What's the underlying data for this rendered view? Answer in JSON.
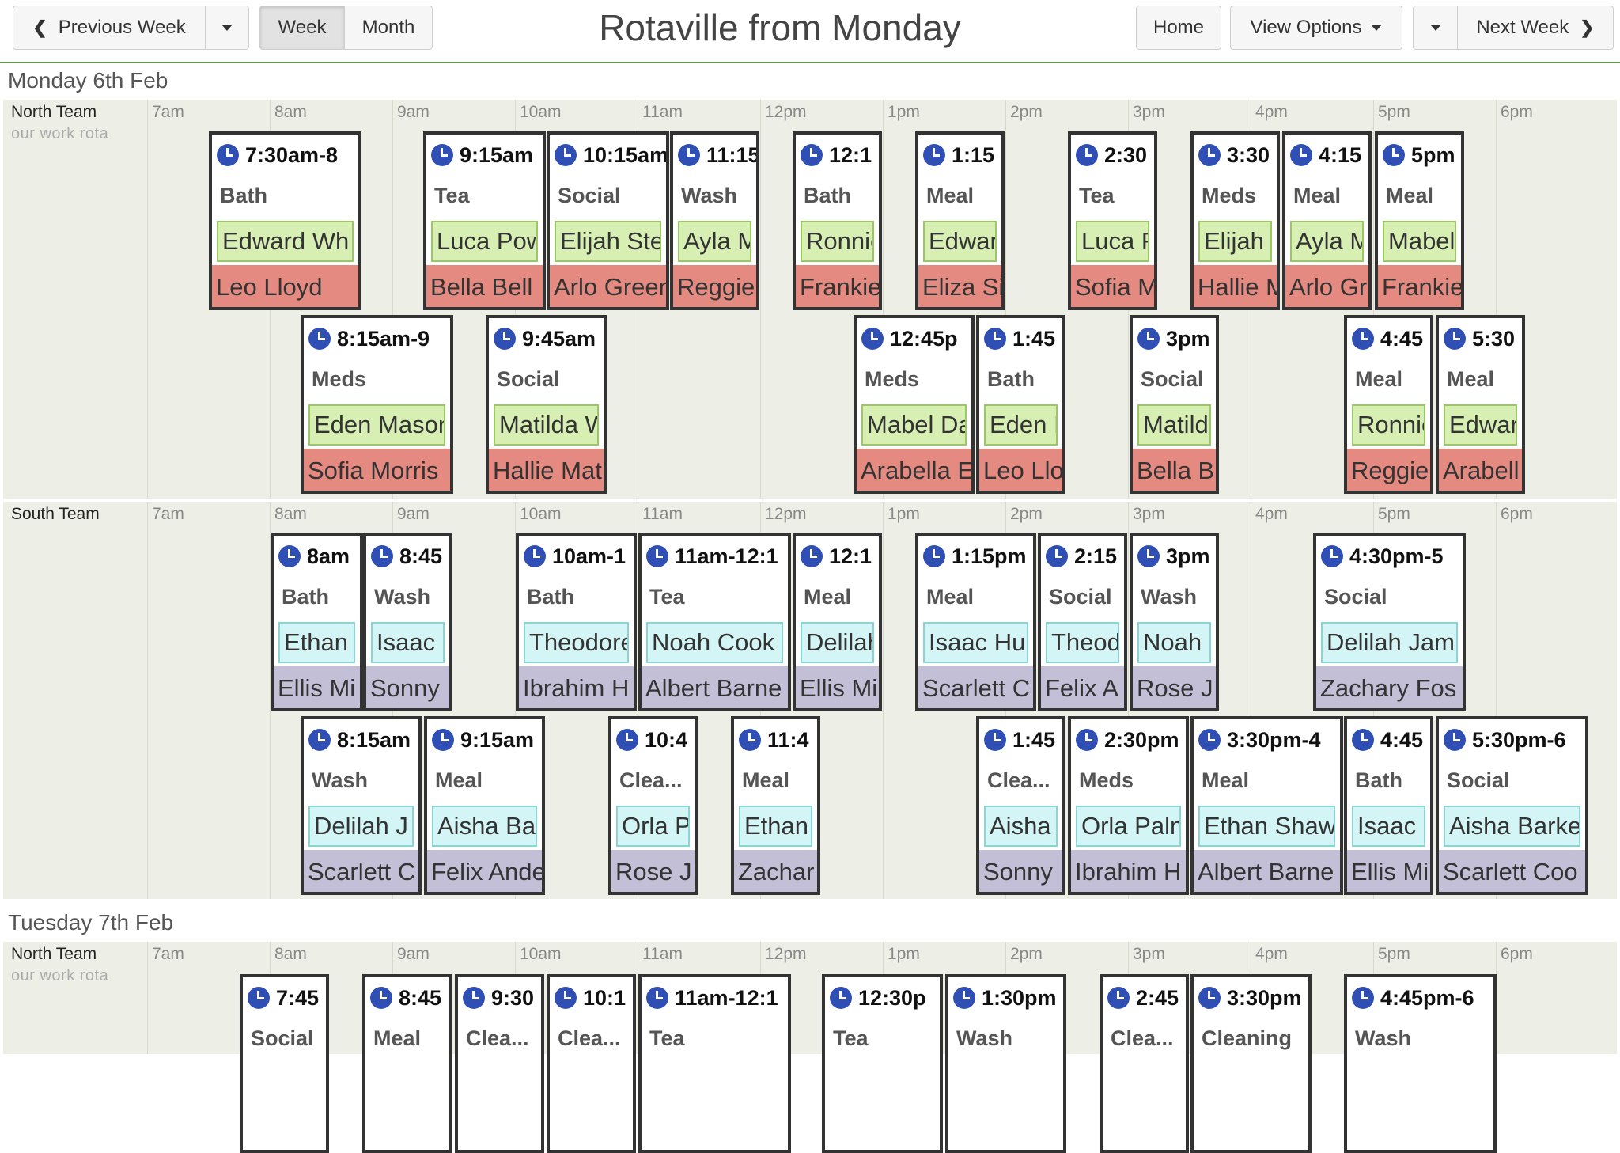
{
  "toolbar": {
    "prev_label": "Previous Week",
    "week_label": "Week",
    "month_label": "Month",
    "title": "Rotaville from Monday",
    "home_label": "Home",
    "view_options_label": "View Options",
    "next_label": "Next Week"
  },
  "times": [
    "7am",
    "8am",
    "9am",
    "10am",
    "11am",
    "12pm",
    "1pm",
    "2pm",
    "3pm",
    "4pm",
    "5pm",
    "6pm"
  ],
  "days": [
    {
      "label": "Monday 6th Feb",
      "teams": [
        {
          "name": "North Team",
          "subtitle": "our work rota",
          "style": "north",
          "rows": [
            [
              {
                "time": "7:30am-8",
                "activity": "Bath",
                "p1": "Edward Wh",
                "p2": "Leo Lloyd"
              },
              {
                "time": "9:15am",
                "activity": "Tea",
                "p1": "Luca Pow",
                "p2": "Bella Bell"
              },
              {
                "time": "10:15am",
                "activity": "Social",
                "p1": "Elijah Ste",
                "p2": "Arlo Green"
              },
              {
                "time": "11:15",
                "activity": "Wash",
                "p1": "Ayla M",
                "p2": "Reggie"
              },
              {
                "time": "12:1",
                "activity": "Bath",
                "p1": "Ronnie",
                "p2": "Frankie"
              },
              {
                "time": "1:15",
                "activity": "Meal",
                "p1": "Edwar",
                "p2": "Eliza Si"
              },
              {
                "time": "2:30",
                "activity": "Tea",
                "p1": "Luca F",
                "p2": "Sofia M"
              },
              {
                "time": "3:30",
                "activity": "Meds",
                "p1": "Elijah S",
                "p2": "Hallie M"
              },
              {
                "time": "4:15",
                "activity": "Meal",
                "p1": "Ayla M",
                "p2": "Arlo Gr"
              },
              {
                "time": "5pm",
                "activity": "Meal",
                "p1": "Mabel",
                "p2": "Frankie"
              }
            ],
            [
              {
                "time": "8:15am-9",
                "activity": "Meds",
                "p1": "Eden Mason",
                "p2": "Sofia Morris"
              },
              {
                "time": "9:45am",
                "activity": "Social",
                "p1": "Matilda W",
                "p2": "Hallie Mat"
              },
              {
                "time": "12:45p",
                "activity": "Meds",
                "p1": "Mabel Da",
                "p2": "Arabella E"
              },
              {
                "time": "1:45",
                "activity": "Bath",
                "p1": "Eden I",
                "p2": "Leo Llo"
              },
              {
                "time": "3pm",
                "activity": "Social",
                "p1": "Matild",
                "p2": "Bella B"
              },
              {
                "time": "4:45",
                "activity": "Meal",
                "p1": "Ronnie",
                "p2": "Reggie"
              },
              {
                "time": "5:30",
                "activity": "Meal",
                "p1": "Edwar",
                "p2": "Arabell"
              }
            ]
          ]
        },
        {
          "name": "South Team",
          "subtitle": "",
          "style": "south",
          "rows": [
            [
              {
                "time": "8am",
                "activity": "Bath",
                "p1": "Ethan",
                "p2": "Ellis Mi"
              },
              {
                "time": "8:45",
                "activity": "Wash",
                "p1": "Isaac I",
                "p2": "Sonny"
              },
              {
                "time": "10am-1",
                "activity": "Bath",
                "p1": "Theodore",
                "p2": "Ibrahim H"
              },
              {
                "time": "11am-12:1",
                "activity": "Tea",
                "p1": "Noah Cook",
                "p2": "Albert Barne"
              },
              {
                "time": "12:1",
                "activity": "Meal",
                "p1": "Delilah",
                "p2": "Ellis Mi"
              },
              {
                "time": "1:15pm",
                "activity": "Meal",
                "p1": "Isaac Hu",
                "p2": "Scarlett C"
              },
              {
                "time": "2:15",
                "activity": "Social",
                "p1": "Theod",
                "p2": "Felix A"
              },
              {
                "time": "3pm",
                "activity": "Wash",
                "p1": "Noah",
                "p2": "Rose J"
              },
              {
                "time": "4:30pm-5",
                "activity": "Social",
                "p1": "Delilah Jam",
                "p2": "Zachary Fos"
              }
            ],
            [
              {
                "time": "8:15am",
                "activity": "Wash",
                "p1": "Delilah J",
                "p2": "Scarlett C"
              },
              {
                "time": "9:15am",
                "activity": "Meal",
                "p1": "Aisha Ba",
                "p2": "Felix Ande"
              },
              {
                "time": "10:4",
                "activity": "Clea...",
                "p1": "Orla P",
                "p2": "Rose J"
              },
              {
                "time": "11:4",
                "activity": "Meal",
                "p1": "Ethan",
                "p2": "Zachar"
              },
              {
                "time": "1:45",
                "activity": "Clea...",
                "p1": "Aisha",
                "p2": "Sonny"
              },
              {
                "time": "2:30pm",
                "activity": "Meds",
                "p1": "Orla Palm",
                "p2": "Ibrahim H"
              },
              {
                "time": "3:30pm-4",
                "activity": "Meal",
                "p1": "Ethan Shaw",
                "p2": "Albert Barne"
              },
              {
                "time": "4:45",
                "activity": "Bath",
                "p1": "Isaac I",
                "p2": "Ellis Mi"
              },
              {
                "time": "5:30pm-6",
                "activity": "Social",
                "p1": "Aisha Barke",
                "p2": "Scarlett Coo"
              }
            ]
          ]
        }
      ]
    },
    {
      "label": "Tuesday 7th Feb",
      "teams": [
        {
          "name": "North Team",
          "subtitle": "our work rota",
          "style": "north",
          "rows": [
            [
              {
                "time": "7:45",
                "activity": "Social",
                "p1": "",
                "p2": ""
              },
              {
                "time": "8:45",
                "activity": "Meal",
                "p1": "",
                "p2": ""
              },
              {
                "time": "9:30",
                "activity": "Clea...",
                "p1": "",
                "p2": ""
              },
              {
                "time": "10:1",
                "activity": "Clea...",
                "p1": "",
                "p2": ""
              },
              {
                "time": "11am-12:1",
                "activity": "Tea",
                "p1": "",
                "p2": ""
              },
              {
                "time": "12:30p",
                "activity": "Tea",
                "p1": "",
                "p2": ""
              },
              {
                "time": "1:30pm",
                "activity": "Wash",
                "p1": "",
                "p2": ""
              },
              {
                "time": "2:45",
                "activity": "Clea...",
                "p1": "",
                "p2": ""
              },
              {
                "time": "3:30pm",
                "activity": "Cleaning",
                "p1": "",
                "p2": ""
              },
              {
                "time": "4:45pm-6",
                "activity": "Wash",
                "p1": "",
                "p2": ""
              }
            ]
          ]
        }
      ]
    }
  ]
}
